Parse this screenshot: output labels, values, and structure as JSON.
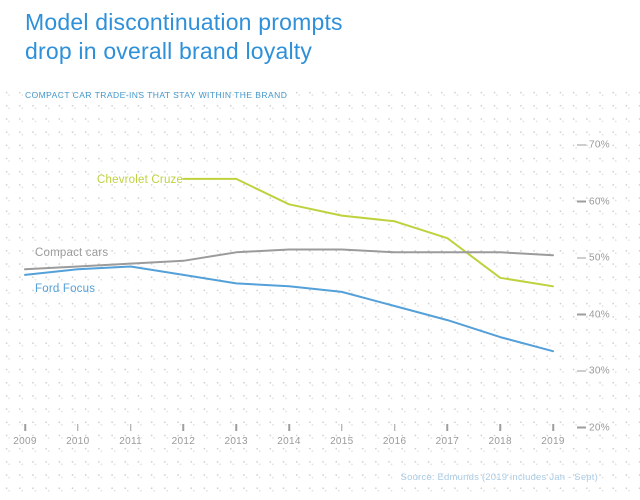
{
  "header": {
    "title_line1": "Model discontinuation prompts",
    "title_line2": "drop in overall brand loyalty",
    "subtitle": "COMPACT CAR TRADE-INS THAT STAY WITHIN THE BRAND"
  },
  "source_note": "Source: Edmunds (2019 includes Jan - Sept)",
  "colors": {
    "title_blue": "#2e90d9",
    "subtitle_blue": "#4498cc",
    "cruze_green": "#bfd23e",
    "compact_gray": "#9b9b9b",
    "focus_blue": "#54a0d8",
    "axis_gray": "#9a9a9a",
    "source_blue": "#a9cbe5"
  },
  "chart_data": {
    "type": "line",
    "title": "Model discontinuation prompts drop in overall brand loyalty",
    "subtitle": "COMPACT CAR TRADE-INS THAT STAY WITHIN THE BRAND",
    "x": [
      2009,
      2010,
      2011,
      2012,
      2013,
      2014,
      2015,
      2016,
      2017,
      2018,
      2019
    ],
    "x_tick_labels": [
      "2009",
      "2010",
      "2011",
      "2012",
      "2013",
      "2014",
      "2015",
      "2016",
      "2017",
      "2018",
      "2019"
    ],
    "y_ticks": [
      70,
      60,
      50,
      40,
      30,
      20
    ],
    "y_tick_labels": [
      "70%",
      "60%",
      "50%",
      "40%",
      "30%",
      "20%"
    ],
    "ylim": [
      20,
      70
    ],
    "unit": "percent",
    "grid": "dotted-background",
    "legend_position": "inline-labels-near-lines",
    "series": [
      {
        "name": "Chevrolet Cruze",
        "color": "#bfd23e",
        "x_start": 2012,
        "values": [
          64,
          64,
          59.5,
          57.5,
          56.5,
          53.5,
          46.5,
          45
        ]
      },
      {
        "name": "Compact cars",
        "color": "#9b9b9b",
        "x_start": 2009,
        "values": [
          48,
          48.5,
          49,
          49.5,
          51,
          51.5,
          51.5,
          51,
          51,
          51,
          50.5
        ]
      },
      {
        "name": "Ford Focus",
        "color": "#54a0d8",
        "x_start": 2009,
        "values": [
          47,
          48,
          48.5,
          47,
          45.5,
          45,
          44,
          41.5,
          39,
          36,
          33.5
        ]
      }
    ],
    "source": "Source: Edmunds (2019 includes Jan - Sept)"
  }
}
